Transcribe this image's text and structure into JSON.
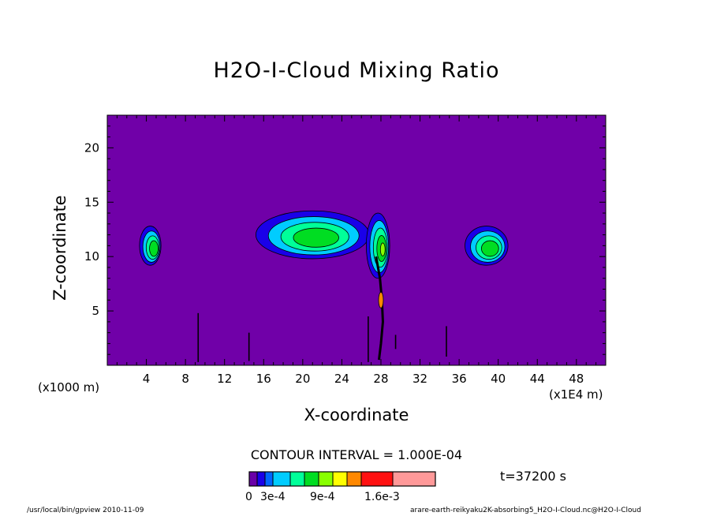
{
  "chart_data": {
    "type": "heatmap",
    "title": "H2O-I-Cloud Mixing Ratio",
    "xlabel": "X-coordinate",
    "ylabel": "Z-coordinate",
    "x_unit_note": "(x1000 m)",
    "x_unit_note_right": "(x1E4 m)",
    "xlim": [
      0,
      51
    ],
    "ylim": [
      0,
      23
    ],
    "x_ticks": [
      4,
      8,
      12,
      16,
      20,
      24,
      28,
      32,
      36,
      40,
      44,
      48
    ],
    "y_ticks": [
      5,
      10,
      15,
      20
    ],
    "contour_interval": "CONTOUR INTERVAL = 1.000E-04",
    "time": "t=37200 s",
    "colorbar_labels": [
      "0",
      "3e-4",
      "9e-4",
      "1.6e-3"
    ],
    "colorbar_colors": [
      "#6a00a8",
      "#1a00e8",
      "#0066ff",
      "#00ccff",
      "#00ff99",
      "#00dd22",
      "#88ff00",
      "#ffff00",
      "#ff8800",
      "#ff1111",
      "#ff9999"
    ],
    "background_color": "#7000a8",
    "clouds": [
      {
        "x_center": 4.4,
        "z_center": 11.0,
        "x_halfwidth": 1.1,
        "z_halfheight": 1.8,
        "max_level": "9e-4"
      },
      {
        "x_center": 21.0,
        "z_center": 12.0,
        "x_halfwidth": 5.8,
        "z_halfheight": 2.2,
        "max_level": "9e-4"
      },
      {
        "x_center": 27.7,
        "z_center": 11.0,
        "x_halfwidth": 1.2,
        "z_halfheight": 3.0,
        "max_level": "1.6e-3"
      },
      {
        "x_center": 38.8,
        "z_center": 11.0,
        "x_halfwidth": 2.2,
        "z_halfheight": 1.8,
        "max_level": "9e-4"
      }
    ]
  },
  "footer": {
    "left": "/usr/local/bin/gpview  2010-11-09",
    "right": "arare-earth-reikyaku2K-absorbing5_H2O-I-Cloud.nc@H2O-I-Cloud"
  }
}
